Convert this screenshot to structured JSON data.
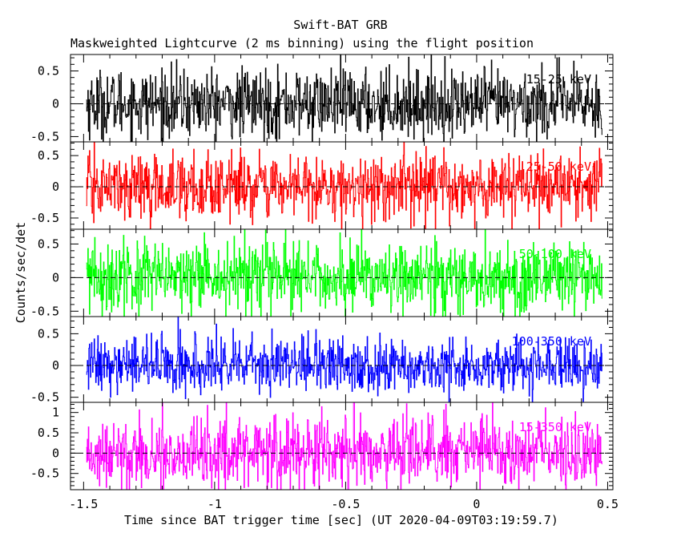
{
  "chart_data": {
    "type": "line",
    "title": "Swift-BAT GRB",
    "subtitle": "Maskweighted Lightcurve (2 ms binning) using the flight position",
    "xlabel": "Time since BAT trigger time [sec] (UT 2020-04-09T03:19:59.7)",
    "ylabel": "Counts/sec/det",
    "xlim": [
      -1.55,
      0.52
    ],
    "x_ticks": [
      "-1.5",
      "-1",
      "-0.5",
      "0",
      "0.5"
    ],
    "x_tick_values": [
      -1.5,
      -1,
      -0.5,
      0,
      0.5
    ],
    "panels": [
      {
        "band": "15-25 keV",
        "color": "#000000",
        "ylim": [
          -0.58,
          0.75
        ],
        "yticks": [
          -0.5,
          0,
          0.5
        ],
        "ytick_labels": [
          "-0.5",
          "0",
          "0.5"
        ],
        "amplitude": 0.26,
        "data_range": [
          -1.49,
          0.48
        ]
      },
      {
        "band": "25-50 keV",
        "color": "#ff0000",
        "ylim": [
          -0.68,
          0.72
        ],
        "yticks": [
          -0.5,
          0,
          0.5
        ],
        "ytick_labels": [
          "-0.5",
          "0",
          "0.5"
        ],
        "amplitude": 0.26,
        "data_range": [
          -1.49,
          0.48
        ]
      },
      {
        "band": "50-100 keV",
        "color": "#00ff00",
        "ylim": [
          -0.58,
          0.72
        ],
        "yticks": [
          -0.5,
          0,
          0.5
        ],
        "ytick_labels": [
          "-0.5",
          "0",
          "0.5"
        ],
        "amplitude": 0.27,
        "data_range": [
          -1.49,
          0.48
        ]
      },
      {
        "band": "100-350 keV",
        "color": "#0000ff",
        "ylim": [
          -0.58,
          0.77
        ],
        "yticks": [
          -0.5,
          0,
          0.5
        ],
        "ytick_labels": [
          "-0.5",
          "0",
          "0.5"
        ],
        "amplitude": 0.22,
        "data_range": [
          -1.49,
          0.48
        ]
      },
      {
        "band": "15-350 keV",
        "color": "#ff00ff",
        "ylim": [
          -0.9,
          1.25
        ],
        "yticks": [
          -0.5,
          0,
          0.5,
          1
        ],
        "ytick_labels": [
          "-0.5",
          "0",
          "0.5",
          "1"
        ],
        "amplitude": 0.45,
        "data_range": [
          -1.49,
          0.48
        ]
      }
    ],
    "bin_width_sec": 0.002,
    "grid": false,
    "legend": "none"
  }
}
